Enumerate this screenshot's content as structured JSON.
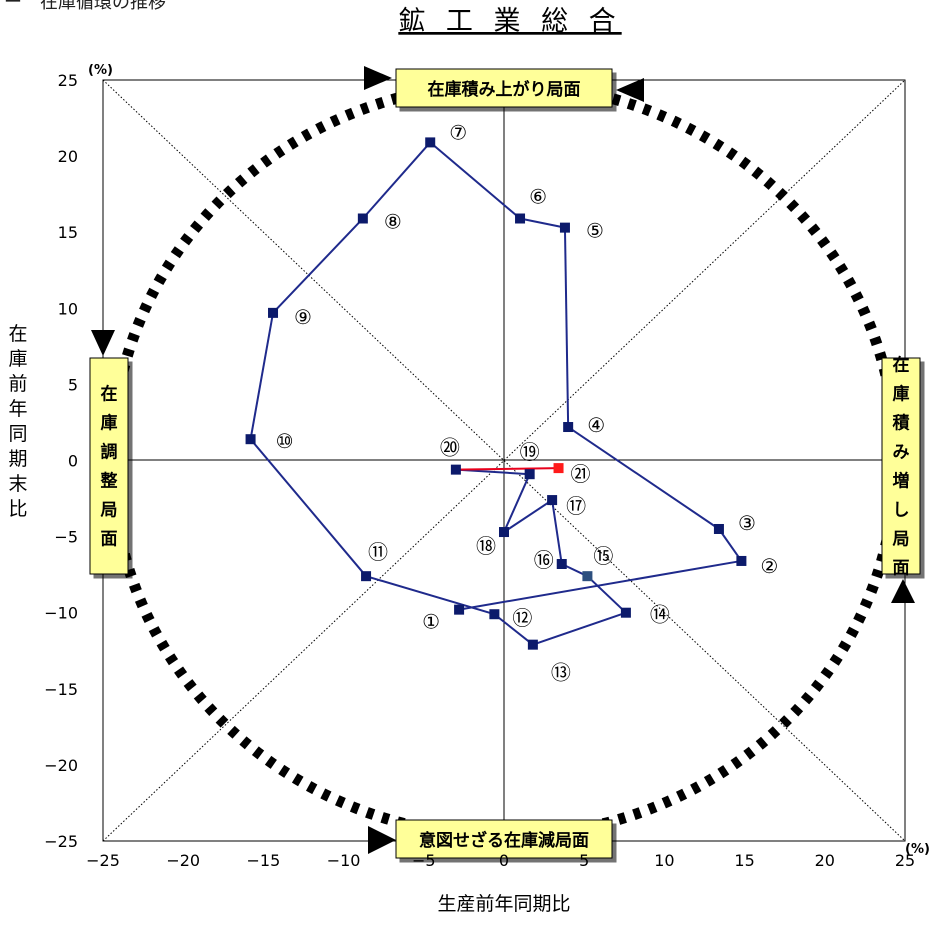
{
  "header": {
    "fragment": "ー　在庫循環の推移"
  },
  "chart_data": {
    "type": "line",
    "title": "鉱 工 業 総 合",
    "xlabel": "生産前年同期比",
    "ylabel": "在庫前年同期末比",
    "xlim": [
      -25,
      25
    ],
    "ylim": [
      -25,
      25
    ],
    "xticks": [
      -25,
      -20,
      -15,
      -10,
      -5,
      0,
      5,
      10,
      15,
      20,
      25
    ],
    "yticks": [
      -25,
      -20,
      -15,
      -10,
      -5,
      0,
      5,
      10,
      15,
      20,
      25
    ],
    "x_unit": "(%)",
    "y_unit": "(%)",
    "grid": false,
    "reference_lines": [
      "x=0",
      "y=0",
      "y=x",
      "y=-x"
    ],
    "phases": {
      "top": "在庫積み上がり局面",
      "bottom": "意図せざる在庫減局面",
      "left": "在庫調整局面",
      "right": "在庫積み増し局面"
    },
    "series": [
      {
        "points": [
          {
            "label": "①",
            "x": -2.8,
            "y": -9.8
          },
          {
            "label": "②",
            "x": 14.8,
            "y": -6.6
          },
          {
            "label": "③",
            "x": 13.4,
            "y": -4.5
          },
          {
            "label": "④",
            "x": 4.0,
            "y": 2.2
          },
          {
            "label": "⑤",
            "x": 3.8,
            "y": 15.3
          },
          {
            "label": "⑥",
            "x": 1.0,
            "y": 15.9
          },
          {
            "label": "⑦",
            "x": -4.6,
            "y": 20.9
          },
          {
            "label": "⑧",
            "x": -8.8,
            "y": 15.9
          },
          {
            "label": "⑨",
            "x": -14.4,
            "y": 9.7
          },
          {
            "label": "⑩",
            "x": -15.8,
            "y": 1.4
          },
          {
            "label": "⑪",
            "x": -8.6,
            "y": -7.6
          },
          {
            "label": "⑫",
            "x": -0.6,
            "y": -10.1
          },
          {
            "label": "⑬",
            "x": 1.8,
            "y": -12.1
          },
          {
            "label": "⑭",
            "x": 7.6,
            "y": -10.0
          },
          {
            "label": "⑮",
            "x": 5.2,
            "y": -7.6
          },
          {
            "label": "⑯",
            "x": 3.6,
            "y": -6.8
          },
          {
            "label": "⑰",
            "x": 3.0,
            "y": -2.6
          },
          {
            "label": "⑱",
            "x": 0.0,
            "y": -4.7
          },
          {
            "label": "⑲",
            "x": 1.6,
            "y": -0.9
          },
          {
            "label": "⑳",
            "x": -3.0,
            "y": -0.6
          },
          {
            "label": "㉑",
            "x": 3.4,
            "y": -0.5
          }
        ]
      }
    ],
    "colors": {
      "series_line": "#1f2a8c",
      "marker": "#0c1a6b",
      "marker_15": "#2d4f7f",
      "latest_segment": "#e8001c",
      "latest_marker": "#ff1a1a",
      "phase_box_fill": "#ffff99",
      "arrow": "#000000"
    }
  }
}
